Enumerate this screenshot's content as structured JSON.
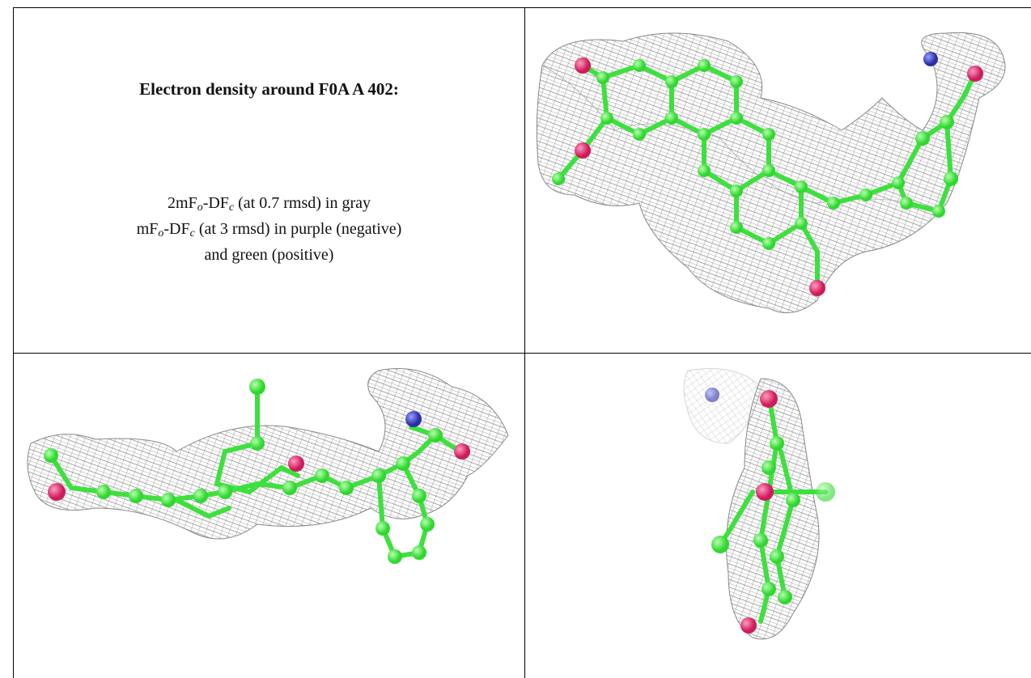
{
  "cell": {
    "title": "Electron density around F0A A 402:",
    "lines": [
      {
        "segments": [
          {
            "text": "2mF"
          },
          {
            "sub": "o"
          },
          {
            "text": "-DF"
          },
          {
            "sub": "c"
          },
          {
            "text": " (at 0.7 rmsd) in gray"
          }
        ]
      },
      {
        "segments": [
          {
            "text": "mF"
          },
          {
            "sub": "o"
          },
          {
            "text": "-DF"
          },
          {
            "sub": "c"
          },
          {
            "text": " (at 3 rmsd) in purple (negative)"
          }
        ]
      },
      {
        "segments": [
          {
            "text": "and green (positive)"
          }
        ]
      }
    ]
  }
}
